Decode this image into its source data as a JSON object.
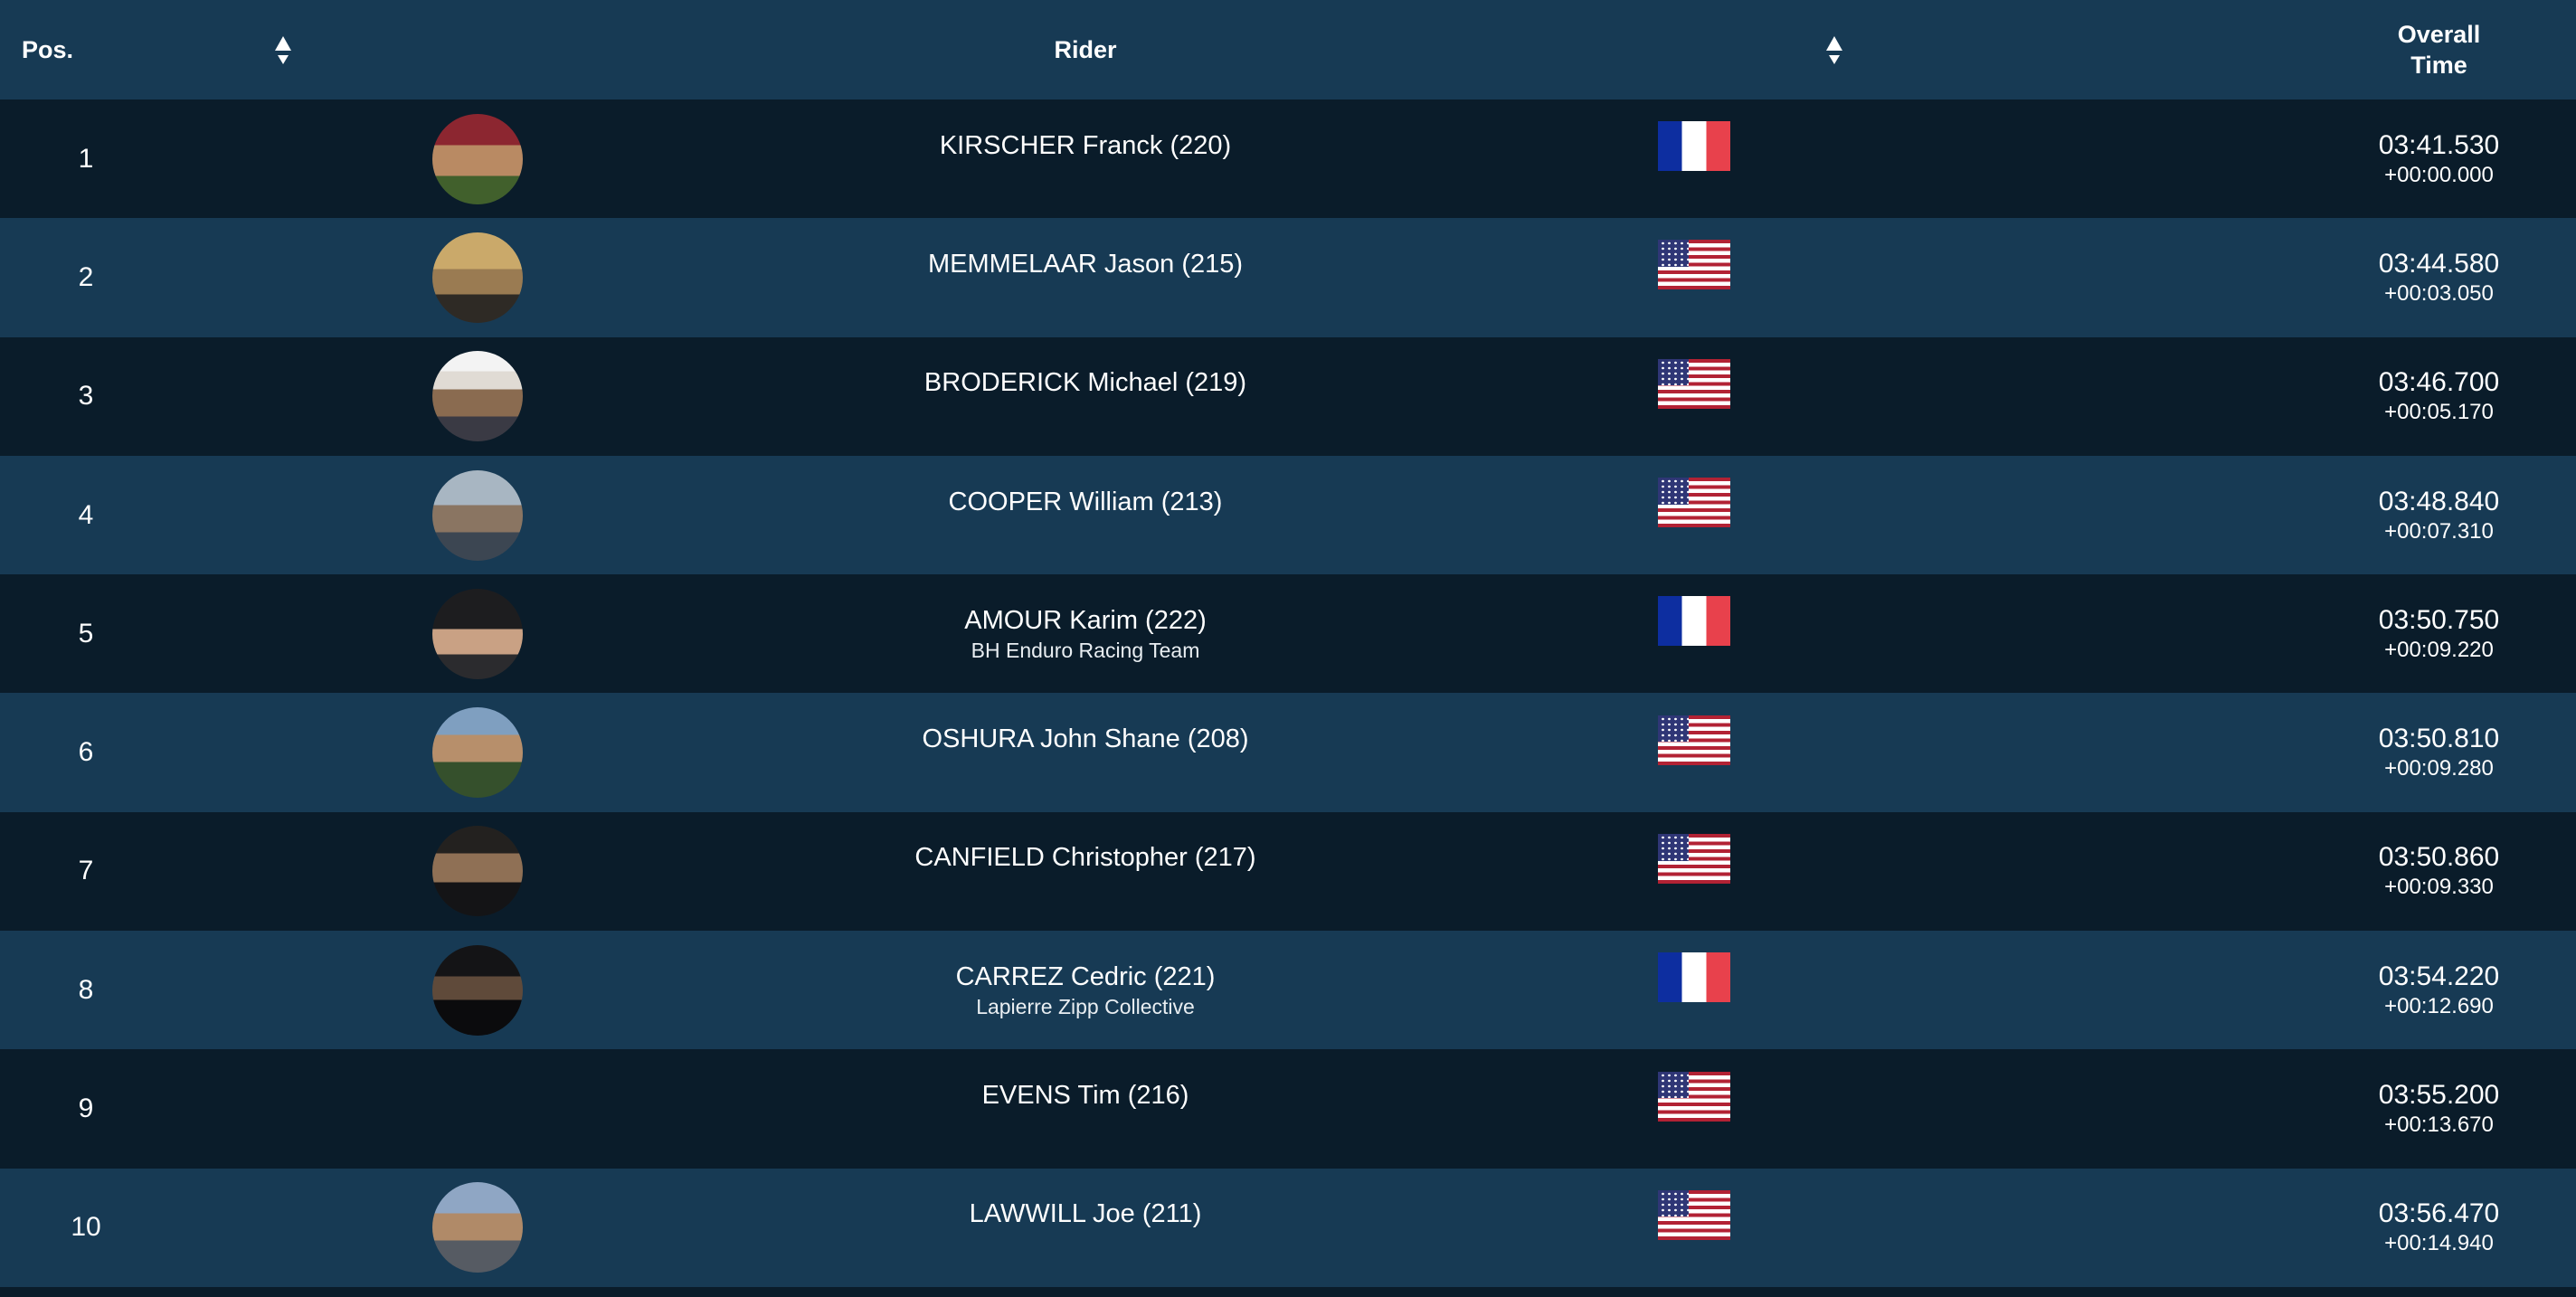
{
  "table": {
    "columns": {
      "pos": "Pos.",
      "rider": "Rider",
      "overall_line1": "Overall",
      "overall_line2": "Time"
    },
    "rows": [
      {
        "pos": "1",
        "name": "KIRSCHER Franck (220)",
        "team": "",
        "flag": "fr",
        "avatar": "a1",
        "time": "03:41.530",
        "gap": "+00:00.000"
      },
      {
        "pos": "2",
        "name": "MEMMELAAR Jason (215)",
        "team": "",
        "flag": "us",
        "avatar": "a2",
        "time": "03:44.580",
        "gap": "+00:03.050"
      },
      {
        "pos": "3",
        "name": "BRODERICK Michael (219)",
        "team": "",
        "flag": "us",
        "avatar": "a3",
        "time": "03:46.700",
        "gap": "+00:05.170"
      },
      {
        "pos": "4",
        "name": "COOPER William (213)",
        "team": "",
        "flag": "us",
        "avatar": "a4",
        "time": "03:48.840",
        "gap": "+00:07.310"
      },
      {
        "pos": "5",
        "name": "AMOUR Karim (222)",
        "team": "BH Enduro Racing Team",
        "flag": "fr",
        "avatar": "a5",
        "time": "03:50.750",
        "gap": "+00:09.220"
      },
      {
        "pos": "6",
        "name": "OSHURA John Shane (208)",
        "team": "",
        "flag": "us",
        "avatar": "a6",
        "time": "03:50.810",
        "gap": "+00:09.280"
      },
      {
        "pos": "7",
        "name": "CANFIELD Christopher (217)",
        "team": "",
        "flag": "us",
        "avatar": "a7",
        "time": "03:50.860",
        "gap": "+00:09.330"
      },
      {
        "pos": "8",
        "name": "CARREZ Cedric (221)",
        "team": "Lapierre Zipp Collective",
        "flag": "fr",
        "avatar": "a8",
        "time": "03:54.220",
        "gap": "+00:12.690"
      },
      {
        "pos": "9",
        "name": "EVENS Tim (216)",
        "team": "",
        "flag": "us",
        "avatar": null,
        "time": "03:55.200",
        "gap": "+00:13.670"
      },
      {
        "pos": "10",
        "name": "LAWWILL Joe (211)",
        "team": "",
        "flag": "us",
        "avatar": "a10",
        "time": "03:56.470",
        "gap": "+00:14.940"
      }
    ]
  },
  "colors": {
    "header_bg": "#173a54",
    "row_dark": "#0a1c2a",
    "row_light": "#173a54",
    "text": "#ffffff",
    "flag_fr_blue": "#0d2ea0",
    "flag_fr_red": "#e8414c",
    "flag_us_red": "#b22234",
    "flag_us_canton": "#2f3676"
  }
}
